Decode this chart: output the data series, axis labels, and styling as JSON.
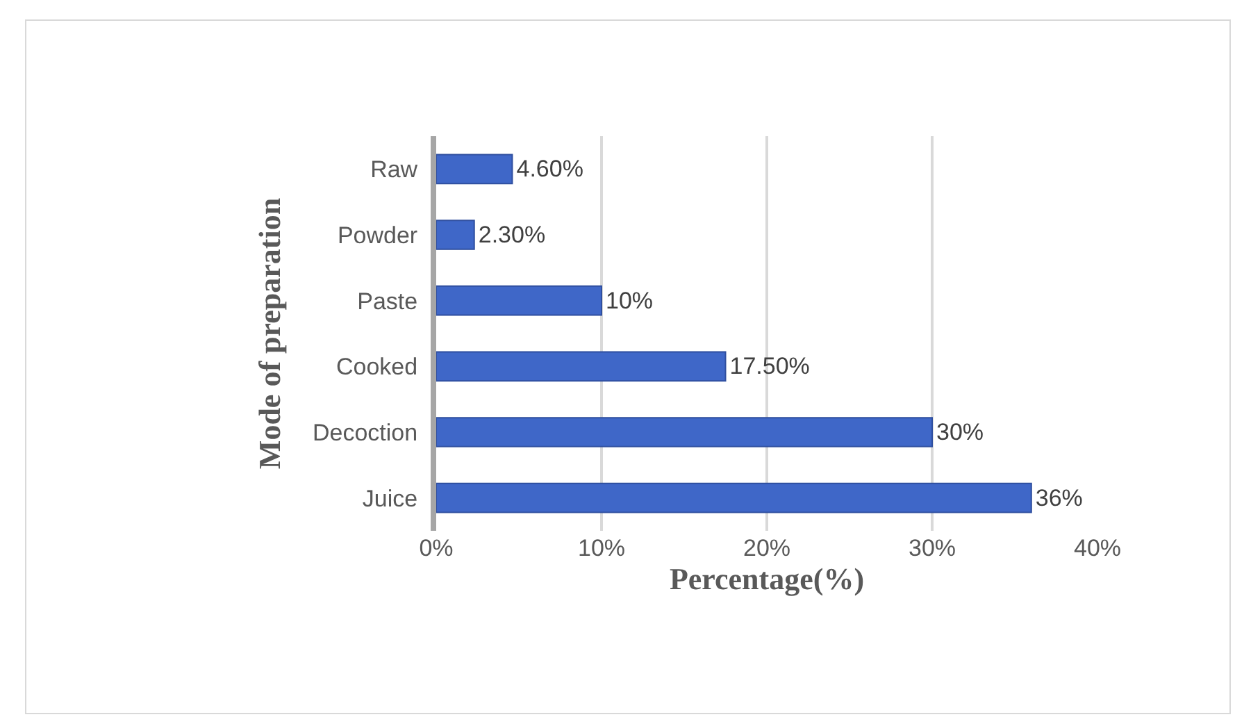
{
  "chart_data": {
    "type": "bar",
    "orientation": "horizontal",
    "xlabel": "Percentage(%)",
    "ylabel": "Mode of preparation",
    "categories": [
      "Raw",
      "Powder",
      "Paste",
      "Cooked",
      "Decoction",
      "Juice"
    ],
    "values": [
      4.6,
      2.3,
      10,
      17.5,
      30,
      36
    ],
    "value_labels": [
      "4.60%",
      "2.30%",
      "10%",
      "17.50%",
      "30%",
      "36%"
    ],
    "color": "#3f67c8",
    "xlim": [
      0,
      40
    ],
    "xticks": [
      {
        "value": 0,
        "label": "0%"
      },
      {
        "value": 10,
        "label": "10%"
      },
      {
        "value": 20,
        "label": "20%"
      },
      {
        "value": 30,
        "label": "30%"
      },
      {
        "value": 40,
        "label": "40%"
      }
    ],
    "grid": "x",
    "legend": false
  }
}
